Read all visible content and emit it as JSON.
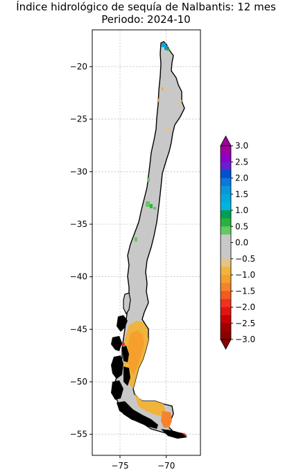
{
  "title": {
    "line1": "Índice hidrológico de sequía de Nalbantis: 12 mes",
    "line2": "Periodo: 2024-10"
  },
  "map": {
    "x_ticks": [
      {
        "value": -75,
        "label": "−75"
      },
      {
        "value": -70,
        "label": "−70"
      }
    ],
    "y_ticks": [
      {
        "value": -20,
        "label": "−20"
      },
      {
        "value": -25,
        "label": "−25"
      },
      {
        "value": -30,
        "label": "−30"
      },
      {
        "value": -35,
        "label": "−35"
      },
      {
        "value": -40,
        "label": "−40"
      },
      {
        "value": -45,
        "label": "−45"
      },
      {
        "value": -50,
        "label": "−50"
      },
      {
        "value": -55,
        "label": "−55"
      }
    ],
    "xlim": [
      -78,
      -66.3
    ],
    "ylim": [
      -57,
      -16.5
    ],
    "grid": true,
    "land_fill_color": "#c8c8c8",
    "border_color": "#000000",
    "islands_color": "#000000"
  },
  "colorbar": {
    "labels": [
      "3.0",
      "2.5",
      "2.0",
      "1.5",
      "1.0",
      "0.5",
      "0.0",
      "−0.5",
      "−1.0",
      "−1.5",
      "−2.0",
      "−2.5",
      "−3.0"
    ],
    "min": -3.0,
    "max": 3.0,
    "bins": [
      {
        "from": 2.75,
        "to": 3.0,
        "color": "#a000a0"
      },
      {
        "from": 2.5,
        "to": 2.75,
        "color": "#8c00c8"
      },
      {
        "from": 2.25,
        "to": 2.5,
        "color": "#6a1ed2"
      },
      {
        "from": 2.0,
        "to": 2.25,
        "color": "#0050d0"
      },
      {
        "from": 1.75,
        "to": 2.0,
        "color": "#0a78dc"
      },
      {
        "from": 1.5,
        "to": 1.75,
        "color": "#0a96dc"
      },
      {
        "from": 1.25,
        "to": 1.5,
        "color": "#00aadc"
      },
      {
        "from": 1.0,
        "to": 1.25,
        "color": "#00b4e1"
      },
      {
        "from": 0.75,
        "to": 1.0,
        "color": "#00a050"
      },
      {
        "from": 0.5,
        "to": 0.75,
        "color": "#28b43c"
      },
      {
        "from": 0.25,
        "to": 0.5,
        "color": "#64c864"
      },
      {
        "from": -0.5,
        "to": 0.25,
        "color": "#c8c8c8"
      },
      {
        "from": -0.75,
        "to": -0.5,
        "color": "#e6c382"
      },
      {
        "from": -1.0,
        "to": -0.75,
        "color": "#f0b43c"
      },
      {
        "from": -1.25,
        "to": -1.0,
        "color": "#f5a02d"
      },
      {
        "from": -1.5,
        "to": -1.25,
        "color": "#f5822d"
      },
      {
        "from": -1.75,
        "to": -1.5,
        "color": "#f55a1e"
      },
      {
        "from": -2.0,
        "to": -1.75,
        "color": "#f0321e"
      },
      {
        "from": -2.25,
        "to": -2.0,
        "color": "#e11414"
      },
      {
        "from": -2.5,
        "to": -2.25,
        "color": "#c80000"
      },
      {
        "from": -2.75,
        "to": -2.5,
        "color": "#a00000"
      },
      {
        "from": -3.0,
        "to": -2.75,
        "color": "#8c0000"
      }
    ],
    "extend_top_color": "#a000a0",
    "extend_bottom_color": "#8c0000"
  },
  "chart_data": {
    "type": "heatmap",
    "title": "Índice hidrológico de sequía de Nalbantis: 12 mes · Periodo: 2024-10",
    "xlabel": "",
    "ylabel": "",
    "xlim": [
      -78,
      -66.3
    ],
    "ylim": [
      -57,
      -16.5
    ],
    "grid": true,
    "legend": "colorbar-right",
    "regions": [
      {
        "name": "",
        "value": 1.2,
        "lon": -69.8,
        "lat": -17.9
      },
      {
        "name": "",
        "value": 1.6,
        "lon": -69.6,
        "lat": -18.1
      },
      {
        "name": "",
        "value": -0.6,
        "lon": -70.0,
        "lat": -22.1
      },
      {
        "name": "",
        "value": -0.6,
        "lon": -69.0,
        "lat": -22.4
      },
      {
        "name": "",
        "value": -0.6,
        "lon": -70.2,
        "lat": -23.4
      },
      {
        "name": "",
        "value": -0.6,
        "lon": -67.8,
        "lat": -23.6
      },
      {
        "name": "",
        "value": -0.6,
        "lon": -69.2,
        "lat": -26.0
      },
      {
        "name": "",
        "value": 0.4,
        "lon": -71.4,
        "lat": -30.8
      },
      {
        "name": "",
        "value": 0.4,
        "lon": -71.3,
        "lat": -33.2
      },
      {
        "name": "",
        "value": 0.4,
        "lon": -70.6,
        "lat": -33.4
      },
      {
        "name": "",
        "value": 0.4,
        "lon": -72.2,
        "lat": -36.5
      },
      {
        "name": "",
        "value": -0.9,
        "lon": -72.0,
        "lat": -45.5
      },
      {
        "name": "",
        "value": -1.1,
        "lon": -72.5,
        "lat": -47.5
      },
      {
        "name": "",
        "value": -1.4,
        "lon": -71.8,
        "lat": -50.5
      },
      {
        "name": "",
        "value": -1.3,
        "lon": -69.5,
        "lat": -53.0
      },
      {
        "name": "",
        "value": -1.4,
        "lon": -68.6,
        "lat": -54.4
      },
      {
        "name": "",
        "value": -1.8,
        "lon": -68.5,
        "lat": -54.8
      }
    ]
  }
}
